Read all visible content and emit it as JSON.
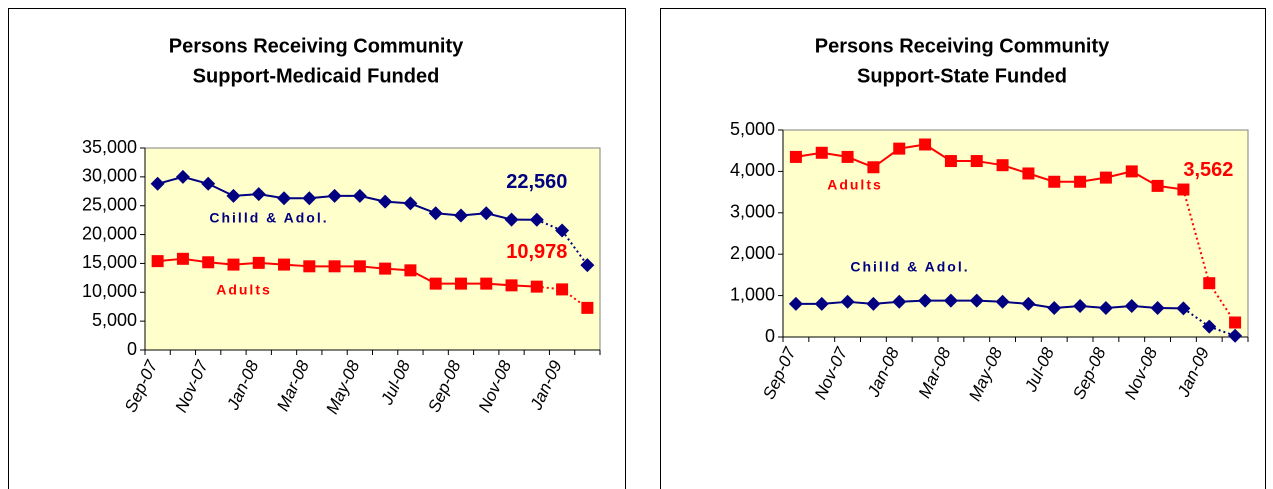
{
  "chart_data": [
    {
      "type": "line",
      "title": [
        "Persons Receiving Community",
        "Support-Medicaid Funded"
      ],
      "categories": [
        "Sep-07",
        null,
        "Nov-07",
        null,
        "Jan-08",
        null,
        "Mar-08",
        null,
        "May-08",
        null,
        "Jul-08",
        null,
        "Sep-08",
        null,
        "Nov-08",
        null,
        "Jan-09",
        null
      ],
      "series": [
        {
          "name": "Chilld & Adol.",
          "color": "#000080",
          "marker": "diamond",
          "values": [
            28800,
            30000,
            28800,
            26700,
            27000,
            26300,
            26300,
            26700,
            26700,
            25700,
            25400,
            23700,
            23300,
            23700,
            22600,
            22560,
            20700,
            14700
          ],
          "value_labels": [
            null,
            null,
            null,
            null,
            null,
            null,
            null,
            null,
            null,
            null,
            null,
            null,
            null,
            null,
            null,
            "22,560",
            null,
            null
          ]
        },
        {
          "name": "Adults",
          "color": "#ff0000",
          "marker": "square",
          "values": [
            15400,
            15800,
            15200,
            14800,
            15100,
            14800,
            14500,
            14500,
            14500,
            14100,
            13800,
            11500,
            11500,
            11500,
            11200,
            10978,
            10500,
            7300
          ],
          "value_labels": [
            null,
            null,
            null,
            null,
            null,
            null,
            null,
            null,
            null,
            null,
            null,
            null,
            null,
            null,
            null,
            "10,978",
            null,
            null
          ]
        }
      ],
      "ylim": [
        0,
        35000
      ],
      "yticks": [
        0,
        {
          "value": 5000,
          "label": "5,000"
        },
        {
          "value": 10000,
          "label": "10,000"
        },
        {
          "value": 15000,
          "label": "15,000"
        },
        {
          "value": 20000,
          "label": "20,000"
        },
        {
          "value": 25000,
          "label": "25,000"
        },
        {
          "value": 30000,
          "label": "30,000"
        },
        {
          "value": 35000,
          "label": "35,000"
        }
      ],
      "plot_background": "#ffffcc"
    },
    {
      "type": "line",
      "title": [
        "Persons Receiving Community",
        "Support-State Funded"
      ],
      "categories": [
        "Sep-07",
        null,
        "Nov-07",
        null,
        "Jan-08",
        null,
        "Mar-08",
        null,
        "May-08",
        null,
        "Jul-08",
        null,
        "Sep-08",
        null,
        "Nov-08",
        null,
        "Jan-09",
        null
      ],
      "series": [
        {
          "name": "Adults",
          "color": "#ff0000",
          "marker": "square",
          "values": [
            4350,
            4450,
            4350,
            4100,
            4550,
            4650,
            4250,
            4250,
            4150,
            3950,
            3750,
            3750,
            3850,
            4000,
            3650,
            3562,
            1300,
            350
          ],
          "value_labels": [
            null,
            null,
            null,
            null,
            null,
            null,
            null,
            null,
            null,
            null,
            null,
            null,
            null,
            null,
            null,
            "3,562",
            null,
            null
          ]
        },
        {
          "name": "Chilld & Adol.",
          "color": "#000080",
          "marker": "diamond",
          "values": [
            800,
            800,
            850,
            800,
            850,
            880,
            880,
            880,
            850,
            800,
            700,
            750,
            700,
            750,
            700,
            691,
            250,
            30
          ]
        }
      ],
      "ylim": [
        0,
        5000
      ],
      "yticks": [
        0,
        {
          "value": 1000,
          "label": "1,000"
        },
        {
          "value": 2000,
          "label": "2,000"
        },
        {
          "value": 3000,
          "label": "3,000"
        },
        {
          "value": 4000,
          "label": "4,000"
        },
        {
          "value": 5000,
          "label": "5,000"
        }
      ],
      "plot_background": "#ffffcc"
    }
  ]
}
